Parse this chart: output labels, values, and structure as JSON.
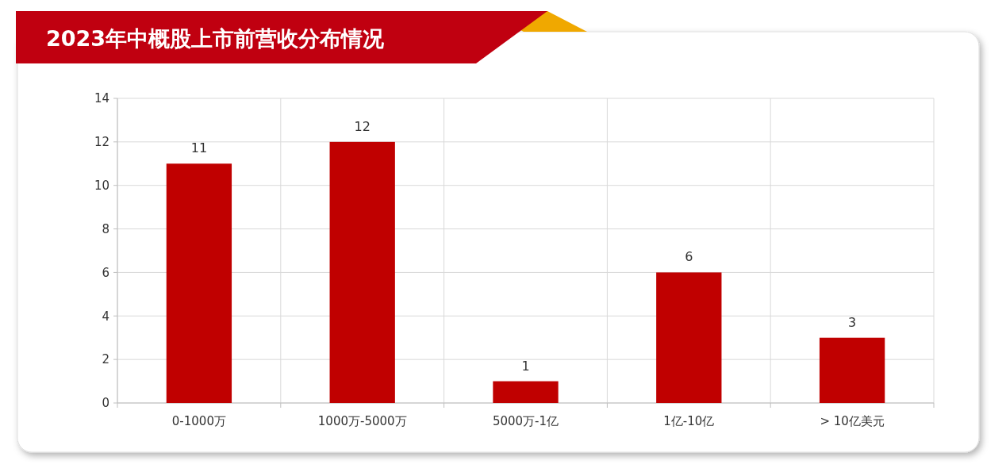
{
  "chart_data": {
    "type": "bar",
    "title": "2023年中概股上市前营收分布情况",
    "categories": [
      "0-1000万",
      "1000万-5000万",
      "5000万-1亿",
      "1亿-10亿",
      "> 10亿美元"
    ],
    "values": [
      11,
      12,
      1,
      6,
      3
    ],
    "color": "#c00000",
    "ylim": [
      0,
      14
    ],
    "yticks": [
      0,
      2,
      4,
      6,
      8,
      10,
      12,
      14
    ],
    "grid": true,
    "data_labels": true
  }
}
